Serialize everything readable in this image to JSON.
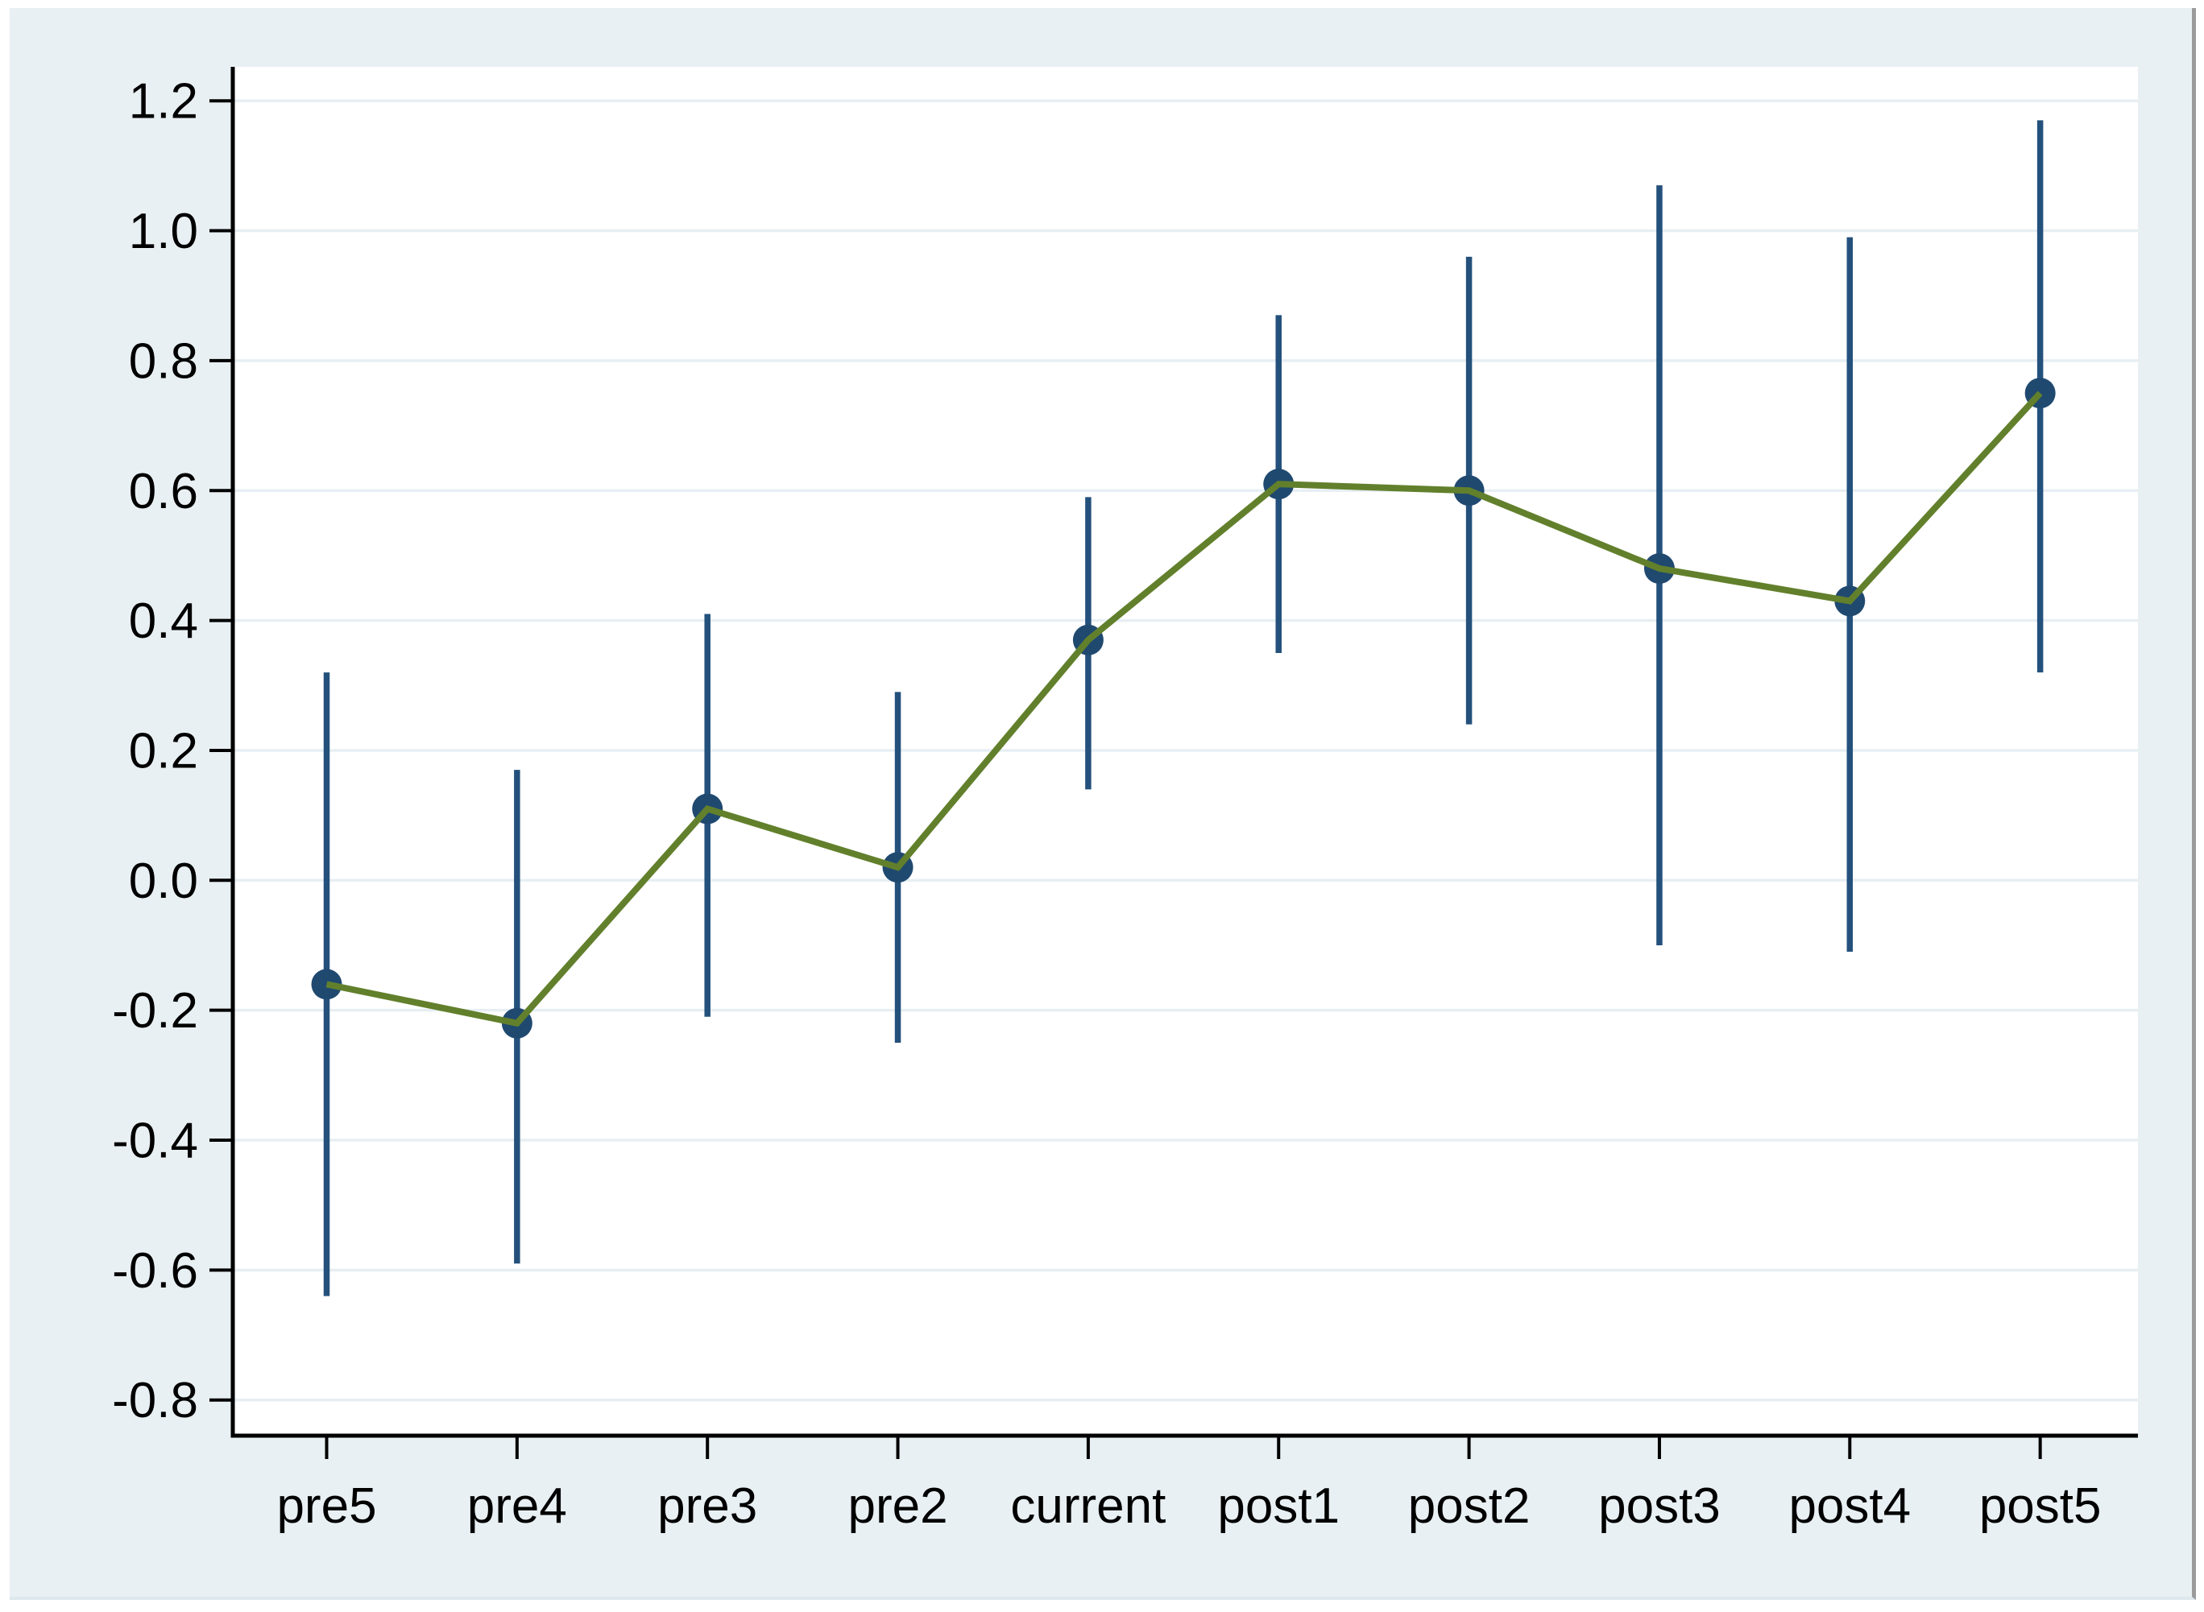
{
  "window": {
    "background_color": "#ffffff",
    "panel_background_color": "#e9f0f3",
    "panel_right_border_color": "#9b9b9b"
  },
  "chart_data": {
    "type": "line",
    "subtype": "connected-point-estimates-with-confidence-intervals",
    "title": "",
    "xlabel": "",
    "ylabel": "",
    "legend_position": "none",
    "grid": true,
    "categories": [
      "pre5",
      "pre4",
      "pre3",
      "pre2",
      "current",
      "post1",
      "post2",
      "post3",
      "post4",
      "post5"
    ],
    "series": [
      {
        "name": "point-estimate",
        "values": [
          -0.16,
          -0.22,
          0.11,
          0.02,
          0.37,
          0.61,
          0.6,
          0.48,
          0.43,
          0.75
        ]
      }
    ],
    "error_bars": {
      "low": [
        -0.64,
        -0.59,
        -0.21,
        -0.25,
        0.14,
        0.35,
        0.24,
        -0.1,
        -0.11,
        0.32
      ],
      "high": [
        0.32,
        0.17,
        0.41,
        0.29,
        0.59,
        0.87,
        0.96,
        1.07,
        0.99,
        1.17
      ]
    },
    "y_ticks": [
      1.2,
      1.0,
      0.8,
      0.6,
      0.4,
      0.2,
      0.0,
      -0.2,
      -0.4,
      -0.6,
      -0.8
    ],
    "y_tick_labels": [
      "1.2",
      "1.0",
      "0.8",
      "0.6",
      "0.4",
      "0.2",
      "0.0",
      "-0.2",
      "-0.4",
      "-0.6",
      "-0.8"
    ],
    "ylim": [
      -0.855,
      1.252
    ],
    "colors": {
      "plot_background": "#ffffff",
      "gridline": "#e7eff3",
      "axis": "#000000",
      "tick": "#000000",
      "tick_label": "#000000",
      "marker": "#204970",
      "error_bar": "#24517c",
      "line": "#62802c"
    }
  }
}
